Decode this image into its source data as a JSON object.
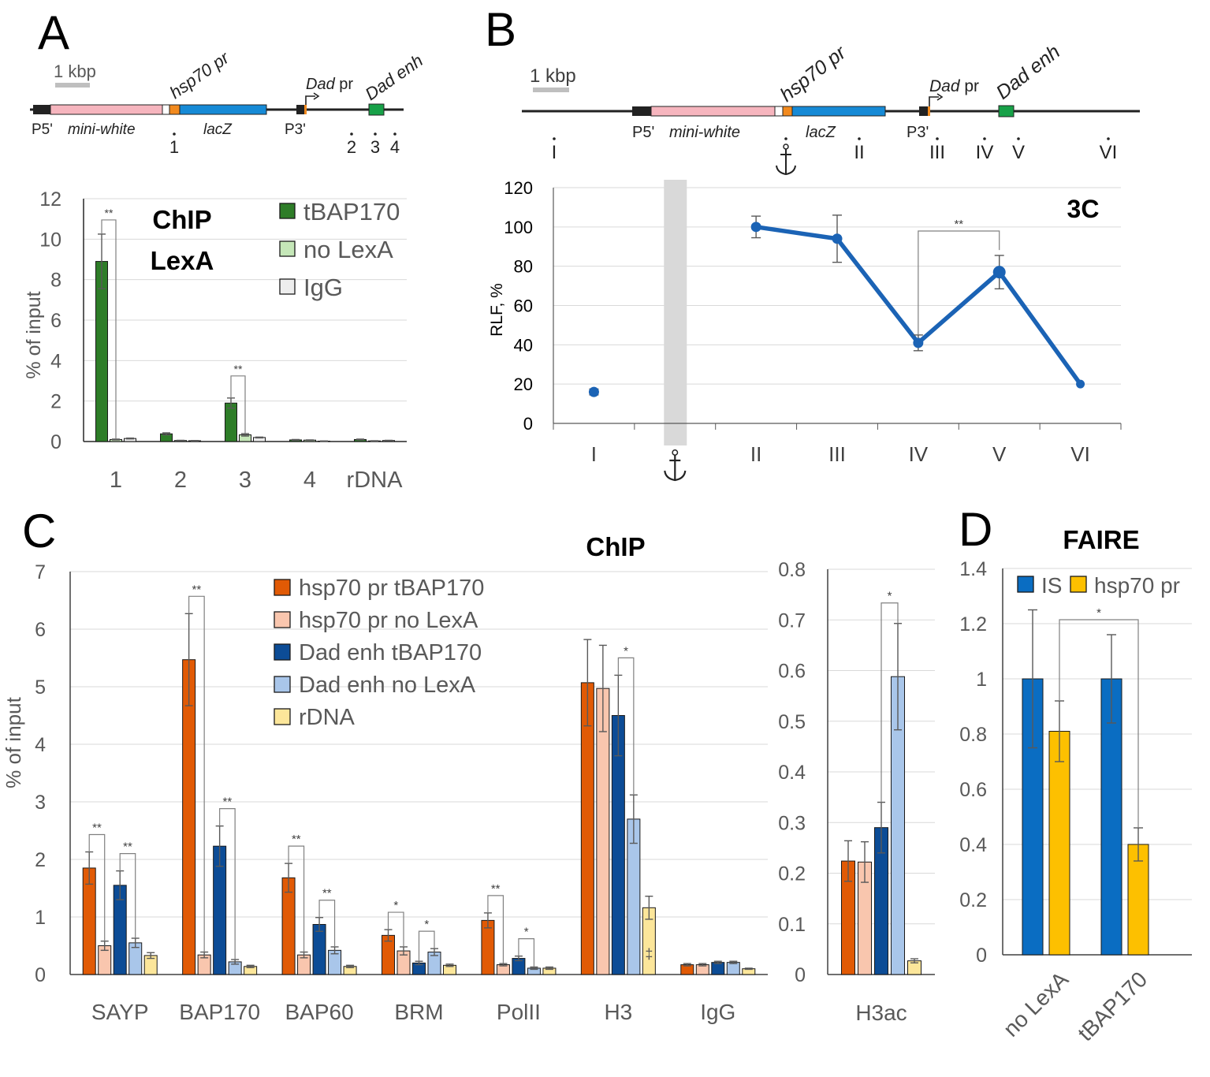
{
  "colors": {
    "dark_green": "#2E7D28",
    "light_green": "#C5E7B8",
    "light_gray": "#EDEDED",
    "orange": "#E15A05",
    "peach": "#F9C6AE",
    "navy": "#0C4C96",
    "light_blue": "#A9C6EA",
    "yellow_light": "#FCE69A",
    "blue": "#0A6DC2",
    "gold": "#FDC000",
    "line_blue": "#1B63B5",
    "construct_pink": "#F6B5BE",
    "construct_blue": "#168AD6",
    "construct_orange": "#F28A1E",
    "construct_green": "#17A148"
  },
  "panels": {
    "A": {
      "letter": "A"
    },
    "B": {
      "letter": "B"
    },
    "C": {
      "letter": "C"
    },
    "D": {
      "letter": "D"
    }
  },
  "construct": {
    "scale_label": "1 kbp",
    "hsp70": "hsp70 pr",
    "dad_pr_italic": "Dad",
    "dad_pr_rest": " pr",
    "dad_enh": "Dad enh",
    "p5": "P5'",
    "mini_white": "mini-white",
    "lacz": "lacZ",
    "p3": "P3'",
    "anchor_icon": "anchor-icon"
  },
  "chart_data": [
    {
      "id": "A",
      "type": "bar",
      "title": "ChIP",
      "subtitle": "LexA",
      "xlabel": "",
      "ylabel": "% of input",
      "ylim": [
        0,
        12
      ],
      "yticks": [
        "0",
        "2",
        "4",
        "6",
        "8",
        "10",
        "12"
      ],
      "categories": [
        "1",
        "2",
        "3",
        "4",
        "rDNA"
      ],
      "site_markers": [
        "1",
        "2",
        "3",
        "4"
      ],
      "series": [
        {
          "name": "tBAP170",
          "values": [
            8.9,
            0.38,
            1.9,
            0.08,
            0.1
          ],
          "errors": [
            1.35,
            0.05,
            0.25,
            0.02,
            0.02
          ]
        },
        {
          "name": "no LexA",
          "values": [
            0.1,
            0.05,
            0.33,
            0.07,
            0.03
          ],
          "errors": [
            0.02,
            0.01,
            0.06,
            0.01,
            0.01
          ]
        },
        {
          "name": "IgG",
          "values": [
            0.15,
            0.04,
            0.2,
            0.02,
            0.05
          ],
          "errors": [
            0.02,
            0.01,
            0.02,
            0.01,
            0.01
          ]
        }
      ],
      "significance": [
        {
          "category": "1",
          "label": "**"
        },
        {
          "category": "3",
          "label": "**"
        }
      ]
    },
    {
      "id": "B",
      "type": "line",
      "title": "3C",
      "xlabel": "",
      "ylabel": "RLF, %",
      "ylim": [
        0,
        120
      ],
      "yticks": [
        "0",
        "20",
        "40",
        "60",
        "80",
        "100",
        "120"
      ],
      "categories": [
        "I",
        "anchor",
        "II",
        "III",
        "IV",
        "V",
        "VI"
      ],
      "x_tick_labels": [
        "I",
        "II",
        "III",
        "IV",
        "V",
        "VI"
      ],
      "values": [
        16,
        null,
        100,
        94,
        41,
        77,
        20
      ],
      "errors": [
        1.5,
        null,
        5.5,
        12,
        4,
        8.5,
        0
      ],
      "significance": [
        {
          "from": "IV",
          "to": "V",
          "label": "**"
        }
      ],
      "site_markers": [
        "I",
        "II",
        "III",
        "IV",
        "V",
        "VI"
      ]
    },
    {
      "id": "C",
      "type": "bar",
      "title": "ChIP",
      "xlabel": "",
      "ylabel": "% of input",
      "ylim": [
        0,
        7
      ],
      "yticks": [
        "0",
        "1",
        "2",
        "3",
        "4",
        "5",
        "6",
        "7"
      ],
      "categories": [
        "SAYP",
        "BAP170",
        "BAP60",
        "BRM",
        "PolII",
        "H3",
        "IgG"
      ],
      "series": [
        {
          "name": "hsp70 pr tBAP170",
          "values": [
            1.85,
            5.47,
            1.68,
            0.68,
            0.94,
            5.07,
            0.17
          ],
          "errors": [
            0.28,
            0.8,
            0.25,
            0.1,
            0.13,
            0.75,
            0.02
          ]
        },
        {
          "name": "hsp70 pr no LexA",
          "values": [
            0.5,
            0.34,
            0.34,
            0.41,
            0.17,
            4.97,
            0.17
          ],
          "errors": [
            0.08,
            0.05,
            0.05,
            0.07,
            0.02,
            0.75,
            0.02
          ]
        },
        {
          "name": "Dad enh tBAP170",
          "values": [
            1.55,
            2.23,
            0.87,
            0.2,
            0.28,
            4.5,
            0.21
          ],
          "errors": [
            0.25,
            0.35,
            0.12,
            0.03,
            0.04,
            0.7,
            0.02
          ]
        },
        {
          "name": "Dad enh no LexA",
          "values": [
            0.55,
            0.22,
            0.42,
            0.39,
            0.11,
            2.7,
            0.21
          ],
          "errors": [
            0.08,
            0.04,
            0.06,
            0.06,
            0.02,
            0.42,
            0.02
          ]
        },
        {
          "name": "rDNA",
          "values": [
            0.33,
            0.14,
            0.14,
            0.16,
            0.11,
            1.16,
            0.1
          ],
          "errors": [
            0.05,
            0.02,
            0.02,
            0.02,
            0.02,
            0.2,
            0.01
          ]
        }
      ],
      "significance": [
        {
          "category": "SAYP",
          "pair": "hsp70 pr",
          "label": "**"
        },
        {
          "category": "SAYP",
          "pair": "Dad enh",
          "label": "**"
        },
        {
          "category": "BAP170",
          "pair": "hsp70 pr",
          "label": "**"
        },
        {
          "category": "BAP170",
          "pair": "Dad enh",
          "label": "**"
        },
        {
          "category": "BAP60",
          "pair": "hsp70 pr",
          "label": "**"
        },
        {
          "category": "BAP60",
          "pair": "Dad enh",
          "label": "**"
        },
        {
          "category": "BRM",
          "pair": "hsp70 pr",
          "label": "*"
        },
        {
          "category": "BRM",
          "pair": "Dad enh",
          "label": "*"
        },
        {
          "category": "PolII",
          "pair": "hsp70 pr",
          "label": "**"
        },
        {
          "category": "PolII",
          "pair": "Dad enh",
          "label": "*"
        },
        {
          "category": "H3",
          "pair": "Dad enh",
          "label": "*"
        }
      ]
    },
    {
      "id": "C-right",
      "type": "bar",
      "ylim": [
        0,
        0.8
      ],
      "yticks": [
        "0",
        "0.1",
        "0.2",
        "0.3",
        "0.4",
        "0.5",
        "0.6",
        "0.7",
        "0.8"
      ],
      "categories": [
        "H3ac"
      ],
      "series": [
        {
          "name": "hsp70 pr tBAP170",
          "values": [
            0.224
          ],
          "errors": [
            0.04
          ]
        },
        {
          "name": "hsp70 pr no LexA",
          "values": [
            0.222
          ],
          "errors": [
            0.04
          ]
        },
        {
          "name": "Dad enh tBAP170",
          "values": [
            0.29
          ],
          "errors": [
            0.05
          ]
        },
        {
          "name": "Dad enh no LexA",
          "values": [
            0.588
          ],
          "errors": [
            0.105
          ]
        },
        {
          "name": "rDNA",
          "values": [
            0.027
          ],
          "errors": [
            0.004
          ]
        }
      ],
      "significance": [
        {
          "category": "H3ac",
          "pair": "Dad enh",
          "label": "*"
        }
      ]
    },
    {
      "id": "D",
      "type": "bar",
      "title": "FAIRE",
      "ylim": [
        0,
        1.4
      ],
      "yticks": [
        "0",
        "0.2",
        "0.4",
        "0.6",
        "0.8",
        "1",
        "1.2",
        "1.4"
      ],
      "categories": [
        "no LexA",
        "tBAP170"
      ],
      "series": [
        {
          "name": "IS",
          "values": [
            1.0,
            1.0
          ],
          "errors": [
            0.25,
            0.16
          ]
        },
        {
          "name": "hsp70 pr",
          "values": [
            0.81,
            0.4
          ],
          "errors": [
            0.11,
            0.06
          ]
        }
      ],
      "significance": [
        {
          "from": "no LexA",
          "to": "tBAP170",
          "series": "hsp70 pr",
          "label": "*"
        }
      ]
    }
  ]
}
